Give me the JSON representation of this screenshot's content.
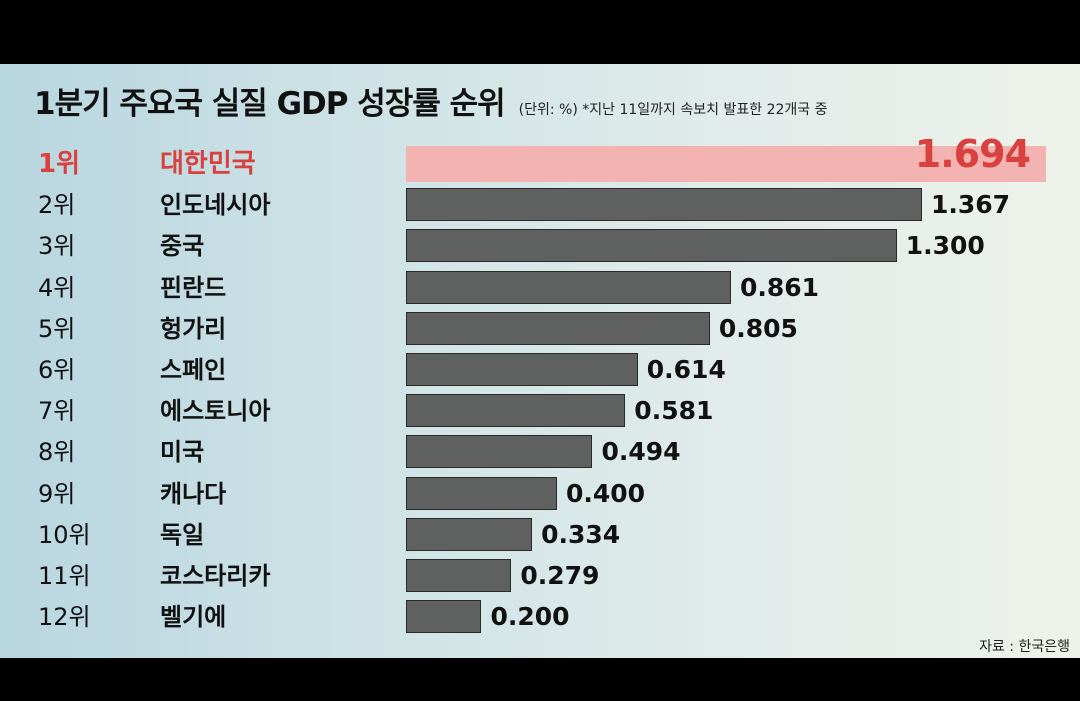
{
  "header": {
    "title": "1분기 주요국 실질 GDP 성장률 순위",
    "subtitle": "(단위: %) *지난 11일까지 속보치 발표한 22개국 중"
  },
  "source": "자료 : 한국은행",
  "colors": {
    "highlight_bar": "#f3b3b0",
    "highlight_text": "#d9413e",
    "bar": "#5e615f"
  },
  "chart_data": {
    "type": "bar",
    "orientation": "horizontal",
    "title": "1분기 주요국 실질 GDP 성장률 순위",
    "unit": "%",
    "xlim": [
      0,
      1.8
    ],
    "categories": [
      "대한민국",
      "인도네시아",
      "중국",
      "핀란드",
      "헝가리",
      "스페인",
      "에스토니아",
      "미국",
      "캐나다",
      "독일",
      "코스타리카",
      "벨기에"
    ],
    "ranks": [
      "1위",
      "2위",
      "3위",
      "4위",
      "5위",
      "6위",
      "7위",
      "8위",
      "9위",
      "10위",
      "11위",
      "12위"
    ],
    "values": [
      1.694,
      1.367,
      1.3,
      0.861,
      0.805,
      0.614,
      0.581,
      0.494,
      0.4,
      0.334,
      0.279,
      0.2
    ],
    "labels": [
      "1.694",
      "1.367",
      "1.300",
      "0.861",
      "0.805",
      "0.614",
      "0.581",
      "0.494",
      "0.400",
      "0.334",
      "0.279",
      "0.200"
    ]
  }
}
